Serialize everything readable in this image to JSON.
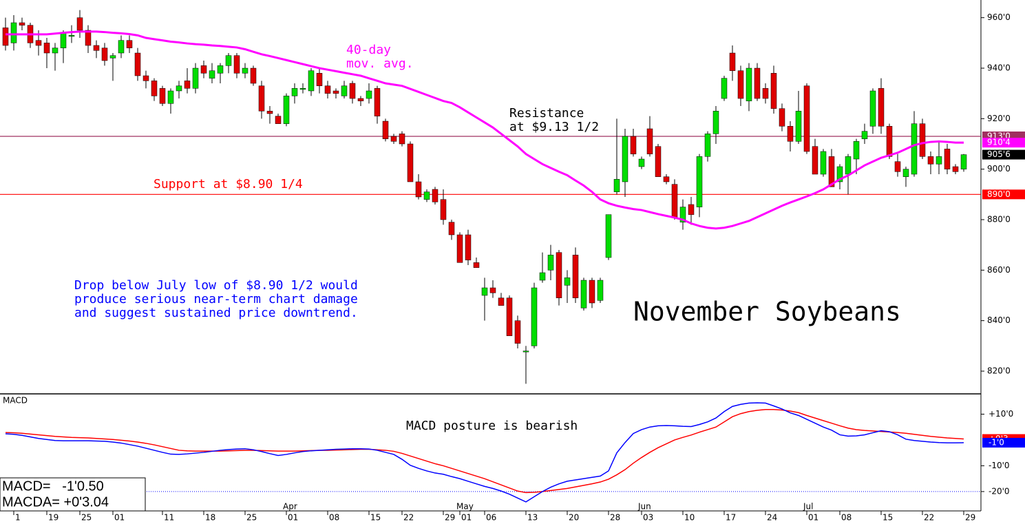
{
  "chart_data": {
    "type": "candlestick",
    "title": "November Soybeans",
    "categories": [
      null,
      "1",
      null,
      null,
      null,
      "19",
      null,
      null,
      null,
      "25",
      null,
      null,
      null,
      "01",
      null,
      null,
      null,
      null,
      null,
      "11",
      null,
      null,
      null,
      null,
      "18",
      null,
      null,
      null,
      null,
      "25",
      null,
      null,
      null,
      null,
      "01",
      null,
      null,
      null,
      null,
      "08",
      null,
      null,
      null,
      null,
      "15",
      null,
      null,
      null,
      "22",
      null,
      null,
      null,
      null,
      "29",
      null,
      "01",
      null,
      null,
      "06",
      null,
      null,
      null,
      null,
      "13",
      null,
      null,
      null,
      null,
      "20",
      null,
      null,
      null,
      null,
      "28",
      null,
      null,
      null,
      "03",
      null,
      null,
      null,
      null,
      "10",
      null,
      null,
      null,
      null,
      "17",
      null,
      null,
      null,
      null,
      "24",
      null,
      null,
      null,
      null,
      "01",
      null,
      null,
      null,
      "08",
      null,
      null,
      null,
      null,
      "15",
      null,
      null,
      null,
      null,
      "22",
      null,
      null,
      null,
      null,
      "29"
    ],
    "months": [
      null,
      null,
      null,
      null,
      null,
      null,
      null,
      null,
      null,
      null,
      null,
      null,
      null,
      null,
      null,
      null,
      null,
      null,
      null,
      null,
      null,
      null,
      null,
      null,
      null,
      null,
      null,
      null,
      null,
      null,
      null,
      null,
      null,
      null,
      "Apr",
      null,
      null,
      null,
      null,
      null,
      null,
      null,
      null,
      null,
      null,
      null,
      null,
      null,
      null,
      null,
      null,
      null,
      null,
      null,
      null,
      "May",
      null,
      null,
      null,
      null,
      null,
      null,
      null,
      null,
      null,
      null,
      null,
      null,
      null,
      null,
      null,
      null,
      null,
      null,
      null,
      null,
      null,
      "Jun",
      null,
      null,
      null,
      null,
      null,
      null,
      null,
      null,
      null,
      null,
      null,
      null,
      null,
      null,
      null,
      null,
      null,
      null,
      null,
      "Jul",
      null,
      null,
      null,
      null,
      null,
      null,
      null,
      null,
      null,
      null,
      null,
      null,
      null,
      null,
      null,
      null,
      null,
      null,
      null
    ],
    "open": [
      956,
      950,
      958,
      957,
      951,
      950,
      946,
      948,
      953,
      960,
      955,
      949,
      948,
      944,
      946,
      951,
      946,
      937,
      935,
      932,
      926,
      931,
      935,
      932,
      941,
      936,
      938,
      941,
      945,
      938,
      940,
      933,
      923,
      921,
      918,
      929,
      932,
      931,
      938,
      933,
      931,
      929,
      934,
      928,
      928,
      932,
      919,
      913,
      914,
      910,
      895,
      888,
      892,
      888,
      879,
      874,
      874,
      863,
      850,
      853,
      849,
      849,
      840,
      828,
      830,
      856,
      860,
      867,
      854,
      866,
      845,
      856,
      848,
      865,
      891,
      895,
      913,
      901,
      916,
      909,
      897,
      894,
      879,
      886,
      885,
      905,
      914,
      928,
      946,
      939,
      927,
      940,
      932,
      938,
      924,
      917,
      911,
      933,
      909,
      898,
      905,
      895,
      898,
      904,
      912,
      917,
      932,
      917,
      903,
      897,
      898,
      918,
      905,
      902,
      908,
      901,
      900
    ],
    "high": [
      960,
      961,
      960,
      958,
      955,
      952,
      950,
      955,
      957,
      963,
      957,
      951,
      950,
      946,
      953,
      953,
      948,
      939,
      936,
      933,
      932,
      935,
      940,
      942,
      943,
      942,
      942,
      946,
      946,
      942,
      941,
      935,
      925,
      922,
      930,
      934,
      934,
      940,
      940,
      935,
      932,
      935,
      935,
      929,
      934,
      933,
      920,
      914,
      915,
      911,
      898,
      892,
      893,
      892,
      880,
      875,
      876,
      865,
      857,
      856,
      851,
      850,
      842,
      830,
      855,
      867,
      870,
      868,
      860,
      869,
      857,
      857,
      857,
      882,
      920,
      916,
      916,
      905,
      921,
      910,
      898,
      896,
      888,
      889,
      906,
      915,
      925,
      937,
      949,
      941,
      942,
      942,
      934,
      941,
      926,
      919,
      931,
      934,
      912,
      908,
      908,
      902,
      906,
      912,
      918,
      932,
      936,
      918,
      906,
      901,
      923,
      920,
      907,
      911,
      910,
      902,
      906
    ],
    "low": [
      947,
      947,
      955,
      948,
      945,
      940,
      939,
      942,
      950,
      952,
      946,
      944,
      941,
      935,
      944,
      946,
      935,
      932,
      927,
      925,
      922,
      928,
      930,
      930,
      936,
      934,
      934,
      938,
      936,
      936,
      933,
      920,
      918,
      918,
      917,
      926,
      930,
      929,
      930,
      928,
      928,
      928,
      926,
      925,
      926,
      918,
      911,
      910,
      909,
      895,
      888,
      887,
      886,
      878,
      872,
      863,
      862,
      861,
      840,
      849,
      846,
      834,
      829,
      815,
      829,
      855,
      856,
      846,
      847,
      847,
      844,
      845,
      847,
      864,
      890,
      889,
      905,
      900,
      905,
      897,
      894,
      880,
      876,
      878,
      881,
      903,
      910,
      927,
      935,
      925,
      923,
      927,
      926,
      922,
      915,
      907,
      910,
      906,
      898,
      897,
      893,
      892,
      890,
      898,
      910,
      914,
      914,
      904,
      897,
      893,
      897,
      904,
      898,
      898,
      898,
      898,
      899
    ],
    "close": [
      949,
      958,
      957,
      950,
      949,
      946,
      948,
      954,
      953,
      955,
      949,
      947,
      943,
      945,
      951,
      948,
      937,
      935,
      929,
      926,
      931,
      933,
      932,
      940,
      938,
      939,
      941,
      945,
      938,
      940,
      934,
      923,
      922,
      918,
      929,
      932,
      932,
      939,
      933,
      930,
      930,
      933,
      928,
      927,
      931,
      921,
      912,
      911,
      910,
      895,
      889,
      891,
      887,
      880,
      874,
      863,
      864,
      861,
      853,
      851,
      846,
      834,
      831,
      828,
      853,
      859,
      866,
      849,
      857,
      849,
      856,
      847,
      856,
      882,
      896,
      913,
      906,
      904,
      906,
      897,
      895,
      881,
      885,
      882,
      905,
      914,
      923,
      936,
      939,
      928,
      940,
      928,
      928,
      924,
      917,
      911,
      923,
      907,
      898,
      907,
      893,
      901,
      905,
      911,
      915,
      931,
      917,
      905,
      899,
      900,
      918,
      905,
      902,
      905,
      900,
      899,
      905.75
    ],
    "up_color": "#00dd00",
    "down_color": "#dd0000",
    "wick_color": "#000000",
    "moving_average": {
      "color": "#ff00ff",
      "values": [
        953.4,
        953.4,
        953.4,
        953.4,
        953.4,
        953.4,
        953.7,
        954,
        954.3,
        954.5,
        954.5,
        954.5,
        954.3,
        954,
        953.8,
        953.5,
        953,
        952,
        951.5,
        951,
        950.5,
        950.2,
        949.8,
        949.5,
        949.3,
        949,
        948.8,
        948.5,
        948.2,
        947.5,
        946.5,
        945.5,
        944.8,
        944,
        943.2,
        942.4,
        941.6,
        940.8,
        940,
        939.4,
        938.8,
        938.2,
        937.6,
        937,
        936,
        935,
        934,
        933.5,
        933,
        931.8,
        930.6,
        929.4,
        928.2,
        927,
        926.2,
        924.5,
        922.5,
        920.5,
        918.5,
        916.5,
        914,
        911.5,
        909,
        906,
        904,
        902,
        900.5,
        899,
        897.6,
        895.5,
        893.5,
        891,
        888,
        886.5,
        885.5,
        884.8,
        884.2,
        883.8,
        883,
        882.2,
        881.5,
        880.8,
        880,
        878.5,
        877.5,
        876.8,
        876.5,
        876.8,
        877.5,
        878.5,
        879.5,
        881,
        882.5,
        884,
        885.5,
        886.8,
        888,
        889.2,
        890.5,
        892,
        894,
        896,
        897.5,
        899.5,
        901.5,
        903,
        904.5,
        905.5,
        906.5,
        908,
        909.5,
        910.3,
        910.8,
        911,
        910.8,
        910.5,
        910.5
      ]
    },
    "ylim": [
      811,
      967
    ],
    "yticks": [
      {
        "value": 960,
        "label": "960'0"
      },
      {
        "value": 940,
        "label": "940'0"
      },
      {
        "value": 920,
        "label": "920'0"
      },
      {
        "value": 900,
        "label": "900'0"
      },
      {
        "value": 880,
        "label": "880'0"
      },
      {
        "value": 860,
        "label": "860'0"
      },
      {
        "value": 840,
        "label": "840'0"
      },
      {
        "value": 820,
        "label": "820'0"
      }
    ],
    "price_lines": [
      {
        "value": 913,
        "label": "913'0",
        "color": "#a03060"
      },
      {
        "value": 890,
        "label": "890'0",
        "color": "#ff0000"
      }
    ],
    "price_markers": [
      {
        "value": 910.5,
        "label": "910'4",
        "color": "#ff00ff"
      },
      {
        "value": 905.75,
        "label": "905'6",
        "color": "#000000"
      }
    ],
    "annotations": [
      {
        "lines": [
          "40-day",
          "mov. avg."
        ],
        "color": "#ff00ff"
      },
      {
        "lines": [
          "Resistance",
          "at $9.13 1/2"
        ],
        "color": "#000000"
      },
      {
        "lines": [
          "Support at $8.90 1/4"
        ],
        "color": "#ff0000"
      },
      {
        "lines": [
          "Drop below July low of $8.90 1/2 would",
          "produce serious near-term chart damage",
          "and suggest sustained price downtrend."
        ],
        "color": "#0000ff"
      }
    ],
    "macd": {
      "label": "MACD",
      "note": "MACD posture is bearish",
      "ylim": [
        -27.5,
        17.6
      ],
      "yticks": [
        {
          "value": 10,
          "label": "+10'0"
        },
        {
          "value": -10,
          "label": "-10'0"
        },
        {
          "value": -20,
          "label": "-20'0"
        }
      ],
      "reference_line": {
        "value": -20,
        "color": "#0000ff"
      },
      "series": [
        {
          "name": "MACDA",
          "color": "#ff0000",
          "values": [
            2.9,
            2.8,
            2.6,
            2.3,
            2,
            1.7,
            1.4,
            1.2,
            1,
            0.9,
            0.8,
            0.6,
            0.4,
            0.2,
            -0.1,
            -0.4,
            -0.8,
            -1.3,
            -1.9,
            -2.6,
            -3.3,
            -4,
            -4.2,
            -4.3,
            -4.3,
            -4.3,
            -4.3,
            -4.2,
            -4.1,
            -4,
            -4,
            -4.1,
            -4.2,
            -4.3,
            -4.3,
            -4.3,
            -4.2,
            -4.1,
            -4,
            -4,
            -3.9,
            -3.8,
            -3.7,
            -3.6,
            -3.6,
            -3.8,
            -4,
            -4.4,
            -5.2,
            -6.2,
            -7.2,
            -8.2,
            -9.2,
            -10,
            -11,
            -12,
            -13,
            -14,
            -15,
            -16.2,
            -17.4,
            -18.6,
            -19.8,
            -20.4,
            -20.3,
            -20,
            -19.6,
            -19.2,
            -18.8,
            -18.2,
            -17.6,
            -17,
            -16.3,
            -15.2,
            -13.5,
            -11.5,
            -9,
            -6.8,
            -4.8,
            -3,
            -1.5,
            0,
            1,
            1.9,
            3,
            4,
            5,
            7,
            9,
            10.2,
            11,
            11.5,
            11.8,
            11.8,
            11.6,
            11.2,
            10.6,
            9.5,
            8.5,
            7.5,
            6.5,
            5.5,
            4.6,
            4,
            3.7,
            3.5,
            3.3,
            3.1,
            2.9,
            2.6,
            2.2,
            1.8,
            1.4,
            1.1,
            0.8,
            0.6,
            0.38
          ],
          "marker_label": "+0'3"
        },
        {
          "name": "MACD",
          "color": "#0000ff",
          "values": [
            2.4,
            2.2,
            1.8,
            1.2,
            0.6,
            0.2,
            -0.2,
            -0.3,
            -0.3,
            -0.3,
            -0.3,
            -0.4,
            -0.5,
            -0.8,
            -1.2,
            -1.8,
            -2.4,
            -3.2,
            -4,
            -4.8,
            -5.5,
            -5.6,
            -5.4,
            -5.1,
            -4.8,
            -4.4,
            -4,
            -3.7,
            -3.5,
            -3.4,
            -3.8,
            -4.5,
            -5.3,
            -6,
            -5.6,
            -5,
            -4.5,
            -4.2,
            -4,
            -3.8,
            -3.6,
            -3.5,
            -3.4,
            -3.4,
            -3.5,
            -4,
            -4.8,
            -5.6,
            -7.5,
            -9.8,
            -11,
            -12,
            -12.8,
            -13.3,
            -14.2,
            -15,
            -16,
            -17,
            -18,
            -18.8,
            -19.8,
            -21,
            -22.5,
            -24,
            -22,
            -20,
            -18.3,
            -17,
            -16,
            -15.5,
            -15,
            -14.5,
            -14,
            -12,
            -5,
            -1,
            2.5,
            4,
            5,
            5.5,
            5.6,
            5.5,
            5.3,
            5.2,
            6,
            7,
            8.5,
            11,
            13,
            13.8,
            14.3,
            14.4,
            14.3,
            13.2,
            12,
            10.5,
            9.5,
            8,
            6.5,
            5,
            3.8,
            2,
            1.5,
            1.6,
            2,
            2.8,
            3.6,
            3.2,
            2,
            0.3,
            -0.2,
            -0.5,
            -0.8,
            -1,
            -1.1,
            -1.1,
            -1.06
          ],
          "marker_label": "-1'0"
        }
      ],
      "readout": [
        "MACD=   -1'0.50",
        "MACDA= +0'3.04"
      ]
    }
  }
}
